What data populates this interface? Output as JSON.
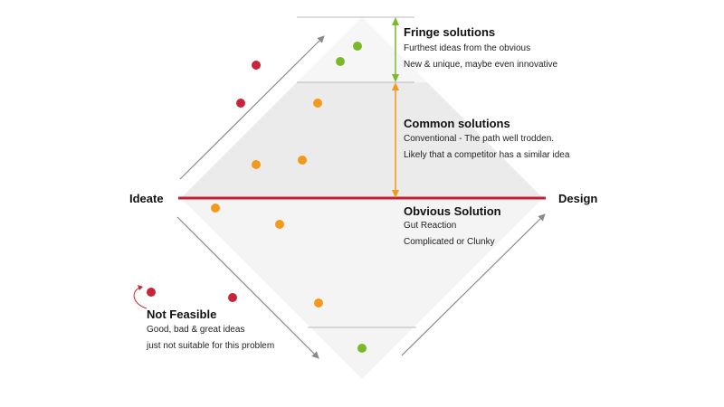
{
  "axis": {
    "left_label": "Ideate",
    "right_label": "Design"
  },
  "sections": {
    "fringe": {
      "title": "Fringe solutions",
      "lines": [
        "Furthest ideas from the obvious",
        "New & unique, maybe even innovative"
      ]
    },
    "common": {
      "title": "Common solutions",
      "lines": [
        "Conventional - The path well trodden.",
        "Likely that a competitor has a similar idea"
      ]
    },
    "obvious": {
      "title": "Obvious Solution",
      "lines": [
        "Gut Reaction",
        "Complicated or Clunky"
      ]
    },
    "not_feasible": {
      "title": "Not Feasible",
      "lines": [
        "Good, bad & great ideas",
        "just not suitable for this problem"
      ]
    }
  },
  "colors": {
    "red": "#c8243a",
    "orange": "#f39a1d",
    "green": "#7ab929",
    "obvious_line": "#c21f32",
    "diamond_fill": "#f4f4f4",
    "band_fill": "#ececec",
    "arrow_gray": "#8a8a8a"
  },
  "ideas": [
    {
      "category": "fringe",
      "color": "green"
    },
    {
      "category": "fringe",
      "color": "green"
    },
    {
      "category": "fringe",
      "color": "green"
    },
    {
      "category": "common",
      "color": "orange"
    },
    {
      "category": "common",
      "color": "orange"
    },
    {
      "category": "common",
      "color": "orange"
    },
    {
      "category": "obvious",
      "color": "orange"
    },
    {
      "category": "obvious",
      "color": "orange"
    },
    {
      "category": "obvious",
      "color": "orange"
    },
    {
      "category": "not_feasible",
      "color": "red"
    },
    {
      "category": "not_feasible",
      "color": "red"
    },
    {
      "category": "not_feasible",
      "color": "red"
    },
    {
      "category": "not_feasible",
      "color": "red"
    }
  ]
}
